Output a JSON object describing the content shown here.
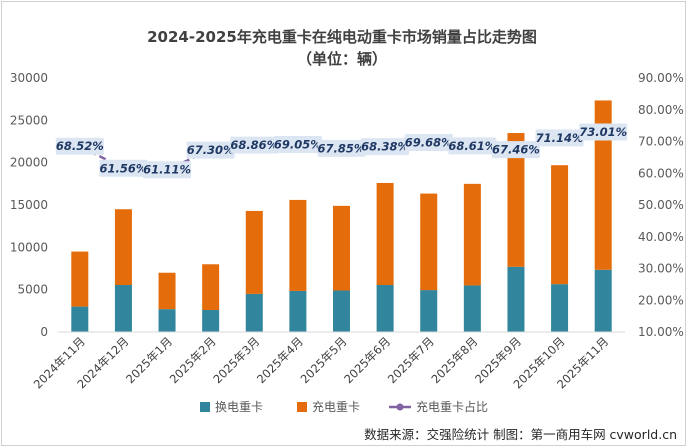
{
  "chart_data": {
    "type": "bar",
    "stacked": true,
    "title": "2024-2025年充电重卡在纯电动重卡市场销量占比走势图",
    "subtitle": "（单位：辆）",
    "categories": [
      "2024年11月",
      "2024年12月",
      "2025年1月",
      "2025年2月",
      "2025年3月",
      "2025年4月",
      "2025年5月",
      "2025年6月",
      "2025年7月",
      "2025年8月",
      "2025年9月",
      "2025年10月",
      "2025年11月"
    ],
    "series": [
      {
        "name": "换电重卡",
        "color": "#31859c",
        "values": [
          3000,
          5550,
          2700,
          2600,
          4500,
          4850,
          4900,
          5550,
          4950,
          5500,
          7700,
          5650,
          7350
        ]
      },
      {
        "name": "充电重卡",
        "color": "#e46c0a",
        "values": [
          6500,
          8950,
          4300,
          5400,
          9800,
          10750,
          10000,
          12050,
          11400,
          12000,
          15800,
          14050,
          20000
        ]
      }
    ],
    "line_series": {
      "name": "充电重卡占比",
      "color": "#8064a2",
      "axis": "right",
      "values": [
        68.52,
        61.56,
        61.11,
        67.3,
        68.86,
        69.05,
        67.85,
        68.38,
        69.68,
        68.61,
        67.46,
        71.14,
        73.01
      ],
      "labels": [
        "68.52%",
        "61.56%",
        "61.11%",
        "67.30%",
        "68.86%",
        "69.05%",
        "67.85%",
        "68.38%",
        "69.68%",
        "68.61%",
        "67.46%",
        "71.14%",
        "73.01%"
      ]
    },
    "ylim_left": [
      0,
      30000
    ],
    "yticks_left": [
      "0",
      "5000",
      "10000",
      "15000",
      "20000",
      "25000",
      "30000"
    ],
    "ylim_right": [
      10,
      90
    ],
    "yticks_right": [
      "10.00%",
      "20.00%",
      "30.00%",
      "40.00%",
      "50.00%",
      "60.00%",
      "70.00%",
      "80.00%",
      "90.00%"
    ],
    "legend_position": "bottom",
    "grid": false
  },
  "source_note": "数据来源：交强险统计 制图：第一商用车网 cvworld.cn"
}
